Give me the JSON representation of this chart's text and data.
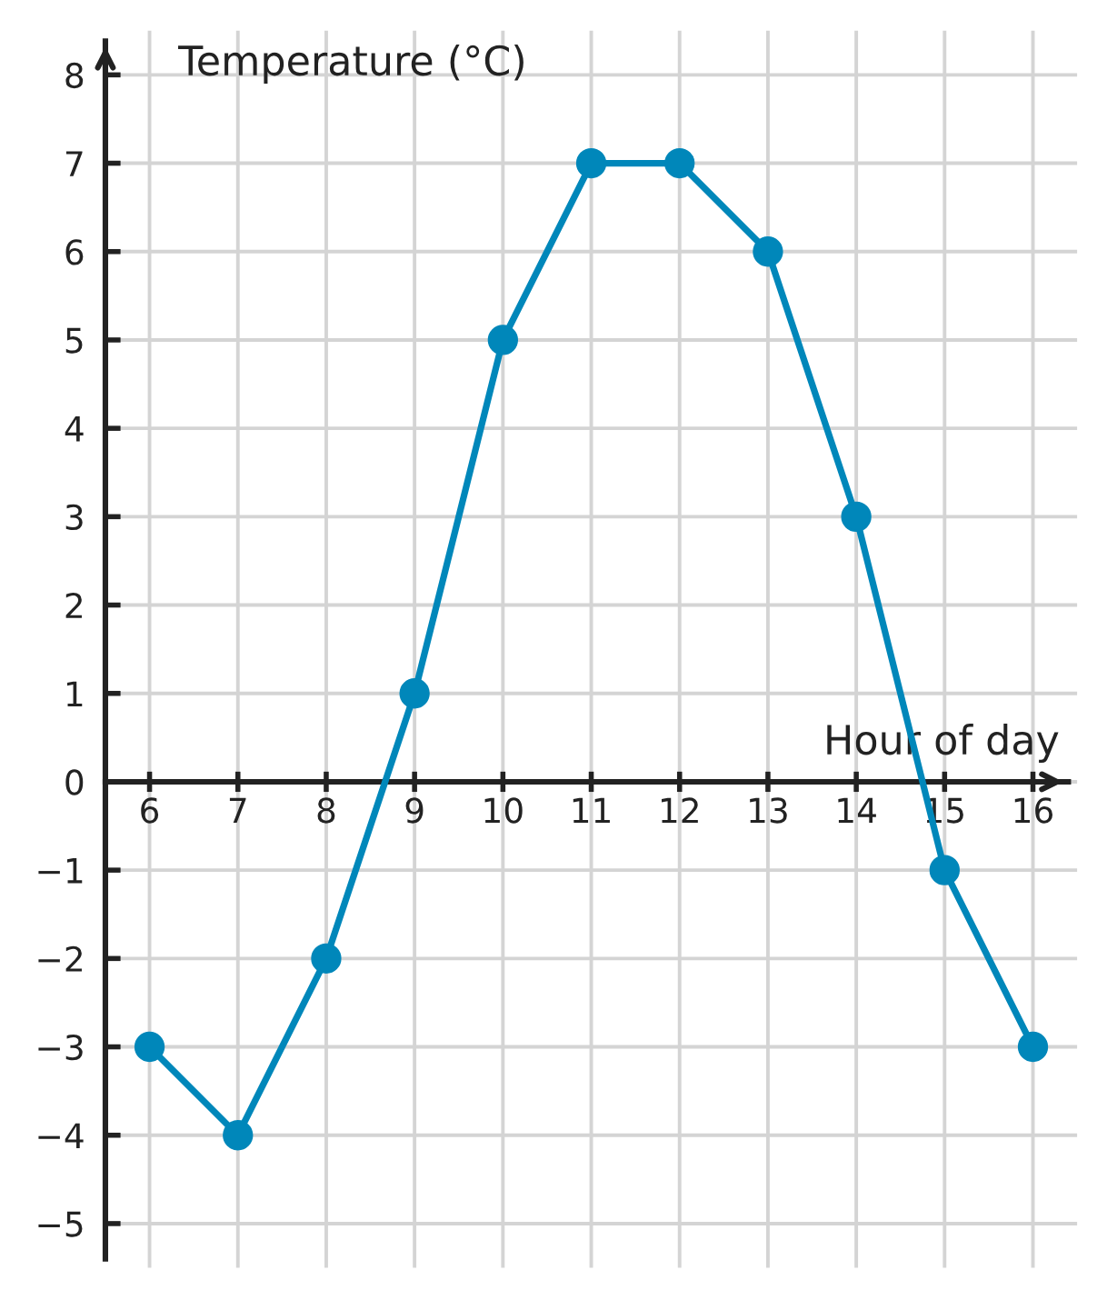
{
  "chart_data": {
    "type": "line",
    "xlabel": "Hour of day",
    "ylabel": "Temperature (°C)",
    "x": [
      6,
      7,
      8,
      9,
      10,
      11,
      12,
      13,
      14,
      15,
      16
    ],
    "series": [
      {
        "color": "#0087ba",
        "values": [
          -3,
          -4,
          -2,
          1,
          5,
          7,
          7,
          6,
          3,
          -1,
          -3
        ]
      }
    ],
    "xlim": [
      5.5,
      16.5
    ],
    "ylim": [
      -5.5,
      8.5
    ],
    "xticks": [
      6,
      7,
      8,
      9,
      10,
      11,
      12,
      13,
      14,
      15,
      16
    ],
    "yticks": [
      {
        "value": -5,
        "label": "−5"
      },
      {
        "value": -4,
        "label": "−4"
      },
      {
        "value": -3,
        "label": "−3"
      },
      {
        "value": -2,
        "label": "−2"
      },
      {
        "value": -1,
        "label": "−1"
      },
      0,
      1,
      2,
      3,
      4,
      5,
      6,
      7,
      8
    ],
    "grid": true,
    "marker": "circle",
    "line_style": "solid"
  }
}
